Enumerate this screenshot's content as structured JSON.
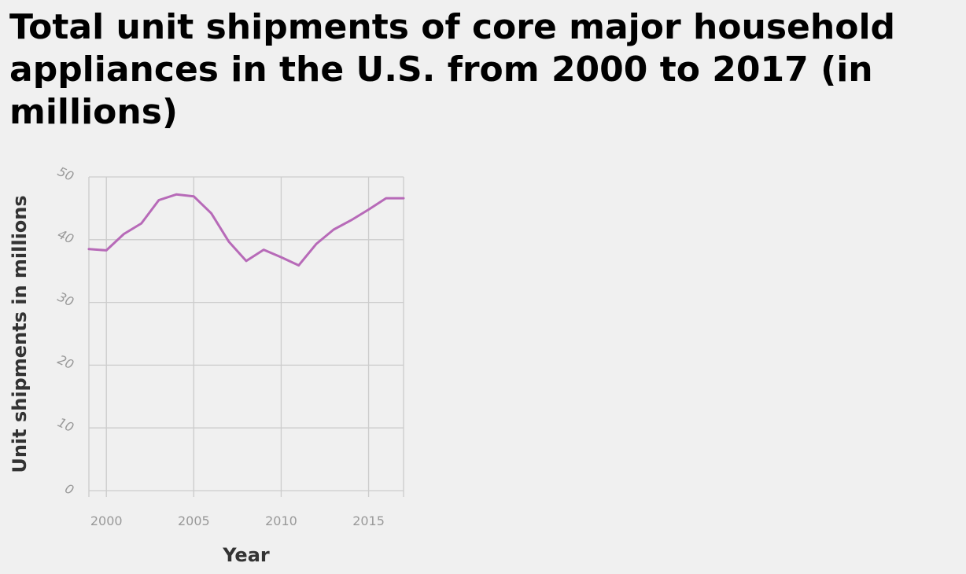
{
  "chart_data": {
    "type": "line",
    "title": "Total unit shipments of core major household appliances in the U.S. from 2000 to 2017 (in millions)",
    "xlabel": "Year",
    "ylabel": "Unit shipments in millions",
    "xlim": [
      1999,
      2017
    ],
    "ylim": [
      0,
      50
    ],
    "x_ticks": [
      2000,
      2005,
      2010,
      2015
    ],
    "y_ticks": [
      0,
      10,
      20,
      30,
      40,
      50
    ],
    "grid": true,
    "series": [
      {
        "x": [
          1999,
          2000,
          2001,
          2002,
          2003,
          2004,
          2005,
          2006,
          2007,
          2008,
          2009,
          2010,
          2011,
          2012,
          2013,
          2014,
          2015,
          2016,
          2017
        ],
        "values": [
          38.5,
          38.3,
          40.9,
          42.6,
          46.3,
          47.2,
          46.9,
          44.2,
          39.7,
          36.6,
          38.4,
          37.2,
          35.9,
          39.3,
          41.6,
          43.1,
          44.8,
          46.6,
          46.6
        ],
        "color": "#b76ab8"
      }
    ]
  }
}
